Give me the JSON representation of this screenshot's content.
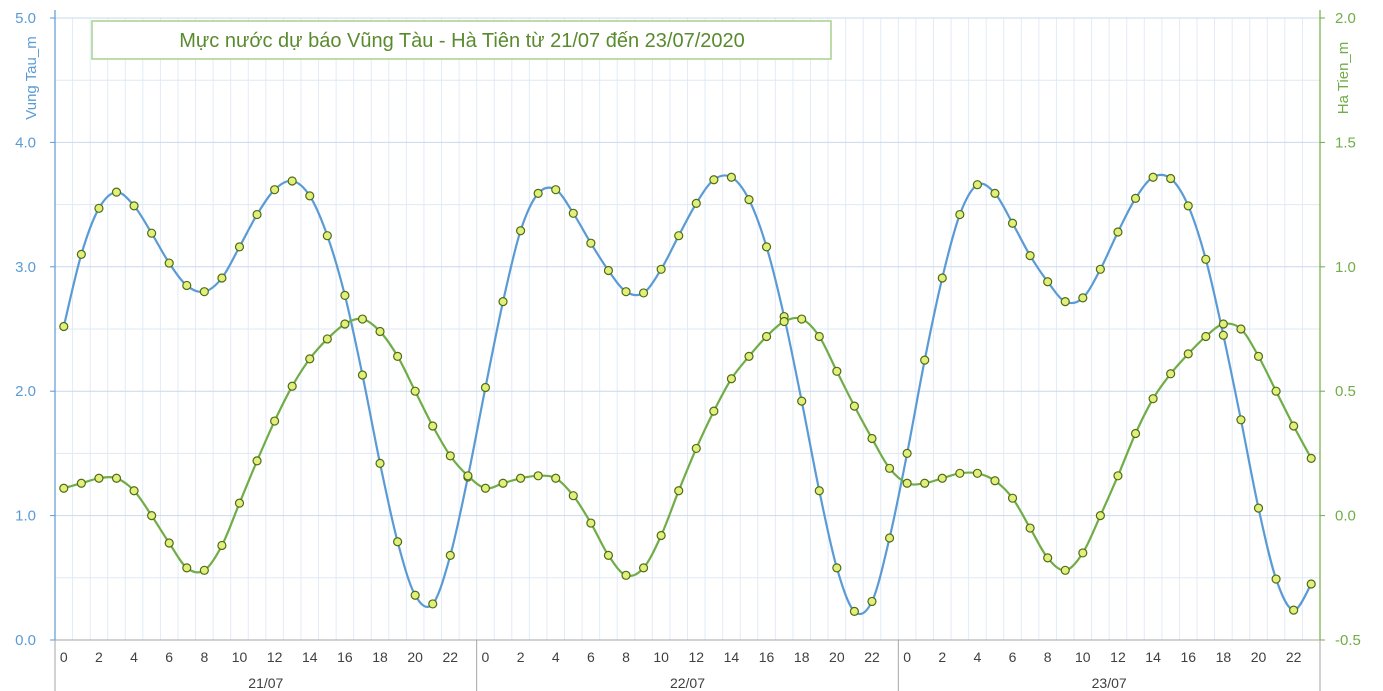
{
  "chart_data": {
    "type": "line",
    "title": "Mực nước dự báo Vũng Tàu - Hà Tiên từ 21/07 đến 23/07/2020",
    "ylabel_left": "Vung Tau_m",
    "ylabel_right": "Ha Tien_m",
    "ylim_left": [
      0,
      5
    ],
    "ylim_right": [
      -0.5,
      2
    ],
    "yticks_left": [
      "0.0",
      "1.0",
      "2.0",
      "3.0",
      "4.0",
      "5.0"
    ],
    "yticks_right": [
      "-0.5",
      "0.0",
      "0.5",
      "1.0",
      "1.5",
      "2.0"
    ],
    "hour_labels": [
      "0",
      "2",
      "4",
      "6",
      "8",
      "10",
      "12",
      "14",
      "16",
      "18",
      "20",
      "22"
    ],
    "days": [
      "21/07",
      "22/07",
      "23/07"
    ],
    "grid": true,
    "series": [
      {
        "name": "Vung Tau_m",
        "axis": "left",
        "color": "#5b9bd5",
        "values": [
          2.52,
          3.1,
          3.47,
          3.6,
          3.49,
          3.27,
          3.03,
          2.85,
          2.8,
          2.91,
          3.16,
          3.42,
          3.62,
          3.69,
          3.57,
          3.25,
          2.77,
          2.13,
          1.42,
          0.79,
          0.36,
          0.29,
          0.68,
          1.31,
          2.03,
          2.72,
          3.29,
          3.59,
          3.62,
          3.43,
          3.19,
          2.97,
          2.8,
          2.79,
          2.98,
          3.25,
          3.51,
          3.7,
          3.72,
          3.54,
          3.16,
          2.6,
          1.92,
          1.2,
          0.58,
          0.23,
          0.31,
          0.82,
          1.5,
          2.25,
          2.91,
          3.42,
          3.66,
          3.59,
          3.35,
          3.09,
          2.88,
          2.72,
          2.75,
          2.98,
          3.28,
          3.55,
          3.72,
          3.71,
          3.49,
          3.06,
          2.45,
          1.77,
          1.06,
          0.49,
          0.24,
          0.45
        ]
      },
      {
        "name": "Ha Tien_m",
        "axis": "right",
        "color": "#70ad47",
        "values": [
          0.11,
          0.13,
          0.15,
          0.15,
          0.1,
          0.0,
          -0.11,
          -0.21,
          -0.22,
          -0.12,
          0.05,
          0.22,
          0.38,
          0.52,
          0.63,
          0.71,
          0.77,
          0.79,
          0.74,
          0.64,
          0.5,
          0.36,
          0.24,
          0.16,
          0.11,
          0.13,
          0.15,
          0.16,
          0.15,
          0.08,
          -0.03,
          -0.16,
          -0.24,
          -0.21,
          -0.08,
          0.1,
          0.27,
          0.42,
          0.55,
          0.64,
          0.72,
          0.78,
          0.79,
          0.72,
          0.58,
          0.44,
          0.31,
          0.19,
          0.13,
          0.13,
          0.15,
          0.17,
          0.17,
          0.14,
          0.07,
          -0.05,
          -0.17,
          -0.22,
          -0.15,
          0.0,
          0.16,
          0.33,
          0.47,
          0.57,
          0.65,
          0.72,
          0.77,
          0.75,
          0.64,
          0.5,
          0.36,
          0.23
        ]
      }
    ]
  }
}
